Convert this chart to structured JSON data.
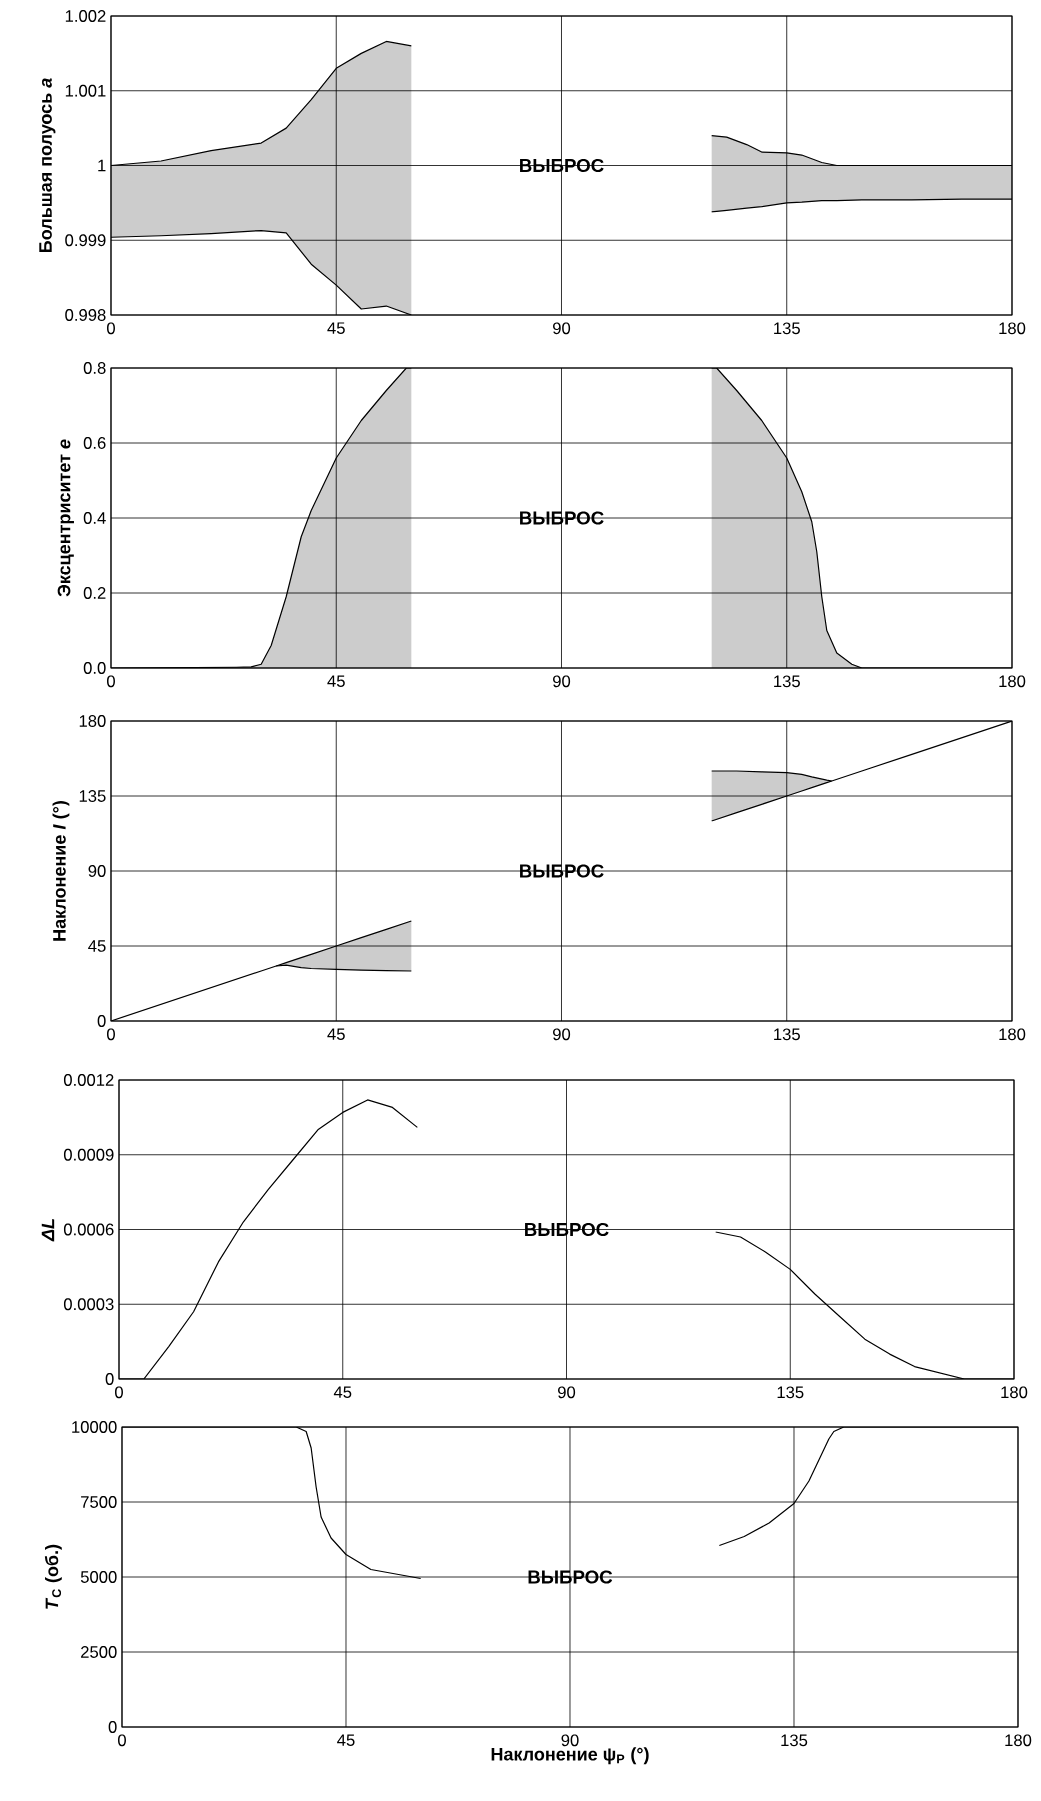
{
  "chart_data": [
    {
      "type": "line",
      "ylabel": "Большая полуось *a*",
      "xlim": [
        0,
        180
      ],
      "xticks": [
        0,
        45,
        90,
        135,
        180
      ],
      "ylim": [
        0.998,
        1.002
      ],
      "yticks": [
        0.998,
        0.999,
        1,
        1.001,
        1.002
      ],
      "grid": true,
      "annotations": [
        "ВЫБРОС"
      ],
      "series": [
        {
          "color": "#000000",
          "x": [
            0,
            10,
            20,
            30,
            35,
            40,
            45,
            50,
            55,
            60
          ],
          "values": [
            1.0,
            1.00006,
            1.0002,
            1.0003,
            1.0005,
            1.00088,
            1.0013,
            1.0015,
            1.00166,
            1.0016
          ],
          "upper": [
            1.0,
            1.00006,
            1.0002,
            1.0003,
            1.0005,
            1.00088,
            1.0013,
            1.0015,
            1.00166,
            1.0016
          ],
          "lower": [
            0.99904,
            0.99906,
            0.99909,
            0.99913,
            0.9991,
            0.99868,
            0.9984,
            0.99808,
            0.99812,
            0.998
          ]
        },
        {
          "color": "#000000",
          "x": [
            0,
            10,
            20,
            30,
            35,
            40,
            45,
            50,
            55,
            60
          ],
          "values": [
            0.99904,
            0.99906,
            0.99909,
            0.99913,
            0.9991,
            0.99868,
            0.9984,
            0.99808,
            0.99812,
            0.998
          ]
        },
        {
          "color": "#000000",
          "x": [
            120,
            123,
            127,
            130,
            135,
            138,
            142,
            145,
            150,
            160,
            170,
            180
          ],
          "values": [
            1.0004,
            1.00038,
            1.00028,
            1.00018,
            1.00017,
            1.00014,
            1.00004,
            1.0,
            1.0,
            1.0,
            1.0,
            1.0
          ],
          "upper": [
            1.0004,
            1.00038,
            1.00028,
            1.00018,
            1.00017,
            1.00014,
            1.00004,
            1.0,
            1.0,
            1.0,
            1.0,
            1.0
          ],
          "lower": [
            0.99938,
            0.9994,
            0.99943,
            0.99945,
            0.9995,
            0.99951,
            0.99953,
            0.99953,
            0.99954,
            0.99954,
            0.99955,
            0.99955
          ]
        },
        {
          "color": "#000000",
          "x": [
            120,
            123,
            127,
            130,
            135,
            138,
            142,
            145,
            150,
            160,
            170,
            180
          ],
          "values": [
            0.99938,
            0.9994,
            0.99943,
            0.99945,
            0.9995,
            0.99951,
            0.99953,
            0.99953,
            0.99954,
            0.99954,
            0.99955,
            0.99955
          ]
        }
      ]
    },
    {
      "type": "area",
      "ylabel": "Эксцентриситет *e*",
      "xlim": [
        0,
        180
      ],
      "xticks": [
        0,
        45,
        90,
        135,
        180
      ],
      "ylim": [
        0,
        0.8
      ],
      "yticks": [
        {
          "value": 0,
          "label": "0.0"
        },
        {
          "value": 0.2,
          "label": "0.2"
        },
        {
          "value": 0.4,
          "label": "0.4"
        },
        {
          "value": 0.6,
          "label": "0.6"
        },
        {
          "value": 0.8,
          "label": "0.8"
        }
      ],
      "grid": true,
      "annotations": [
        "ВЫБРОС"
      ],
      "series": [
        {
          "color": "#cccccc",
          "x": [
            0,
            25,
            28,
            30,
            32,
            35,
            38,
            40,
            45,
            50,
            55,
            59,
            60
          ],
          "values": [
            0,
            0.002,
            0.003,
            0.01,
            0.06,
            0.19,
            0.35,
            0.42,
            0.56,
            0.66,
            0.74,
            0.8,
            0.8
          ]
        },
        {
          "color": "#cccccc",
          "x": [
            120,
            121,
            125,
            130,
            135,
            138,
            140,
            141,
            142,
            143,
            145,
            148,
            150,
            160,
            180
          ],
          "values": [
            0.8,
            0.8,
            0.74,
            0.66,
            0.56,
            0.47,
            0.39,
            0.31,
            0.19,
            0.1,
            0.04,
            0.01,
            0,
            0,
            0
          ]
        }
      ]
    },
    {
      "type": "line",
      "ylabel": "Наклонение *I* (°)",
      "xlim": [
        0,
        180
      ],
      "xticks": [
        0,
        45,
        90,
        135,
        180
      ],
      "ylim": [
        0,
        180
      ],
      "yticks": [
        0,
        45,
        90,
        135,
        180
      ],
      "grid": true,
      "annotations": [
        "ВЫБРОС"
      ],
      "series": [
        {
          "color": "#000000",
          "x": [
            0,
            10,
            20,
            30,
            33,
            35,
            38,
            40,
            45,
            50,
            55,
            60
          ],
          "values": [
            0,
            10,
            20,
            30,
            33,
            35,
            38,
            40,
            45,
            50,
            55,
            60
          ],
          "upper": [
            0,
            10,
            20,
            30,
            33,
            35,
            38,
            40,
            45,
            50,
            55,
            60
          ],
          "lower": [
            0,
            10,
            20,
            30,
            33,
            33.5,
            32,
            31.5,
            31,
            30.5,
            30.2,
            30
          ]
        },
        {
          "color": "#000000",
          "x": [
            33,
            35,
            38,
            40,
            45,
            50,
            55,
            60
          ],
          "values": [
            33,
            33.5,
            32,
            31.5,
            31,
            30.5,
            30.2,
            30
          ]
        },
        {
          "color": "#000000",
          "x": [
            120,
            125,
            130,
            135,
            138,
            140,
            143,
            144,
            150,
            160,
            170,
            180
          ],
          "values": [
            120,
            125,
            130,
            135,
            138,
            140,
            143,
            144,
            150,
            160,
            170,
            180
          ],
          "lower": [
            120,
            125,
            130,
            135,
            138,
            140,
            143,
            144,
            150,
            160,
            170,
            180
          ],
          "upper": [
            150,
            150,
            149.5,
            149,
            148,
            146.5,
            144.5,
            144,
            150,
            160,
            170,
            180
          ]
        },
        {
          "color": "#000000",
          "x": [
            120,
            125,
            130,
            135,
            138,
            140,
            143,
            144
          ],
          "values": [
            150,
            150,
            149.5,
            149,
            148,
            146.5,
            144.5,
            144
          ]
        }
      ]
    },
    {
      "type": "line",
      "ylabel": "*ΔL*",
      "xlim": [
        0,
        180
      ],
      "xticks": [
        0,
        45,
        90,
        135,
        180
      ],
      "ylim": [
        0,
        0.0012
      ],
      "yticks": [
        0,
        0.0003,
        0.0006,
        0.0009,
        0.0012
      ],
      "grid": true,
      "annotations": [
        "ВЫБРОС"
      ],
      "series": [
        {
          "color": "#000000",
          "x": [
            0,
            5,
            10,
            15,
            20,
            25,
            30,
            35,
            40,
            45,
            50,
            55,
            60
          ],
          "values": [
            0,
            0,
            0.00013,
            0.00027,
            0.00047,
            0.00063,
            0.00076,
            0.00088,
            0.001,
            0.00107,
            0.00112,
            0.00109,
            0.00101
          ]
        },
        {
          "color": "#000000",
          "x": [
            120,
            125,
            130,
            135,
            140,
            145,
            150,
            155,
            160,
            170,
            180
          ],
          "values": [
            0.00059,
            0.00057,
            0.00051,
            0.00044,
            0.00034,
            0.00025,
            0.00016,
            0.0001,
            5e-05,
            0,
            0
          ]
        }
      ]
    },
    {
      "type": "line",
      "ylabel": "*T*$_{C}$ (об.)",
      "xlabel": "Наклонение ψ$_{P}$ (°)",
      "xlim": [
        0,
        180
      ],
      "xticks": [
        0,
        45,
        90,
        135,
        180
      ],
      "ylim": [
        0,
        10000
      ],
      "yticks": [
        0,
        2500,
        5000,
        7500,
        10000
      ],
      "grid": true,
      "annotations": [
        "ВЫБРОС"
      ],
      "series": [
        {
          "color": "#000000",
          "x": [
            0,
            25,
            30,
            33,
            35,
            37,
            38,
            39,
            40,
            42,
            45,
            50,
            55,
            60
          ],
          "values": [
            10000,
            10000,
            10000,
            10000,
            10000,
            9850,
            9300,
            8000,
            7000,
            6300,
            5750,
            5250,
            5100,
            4950
          ]
        },
        {
          "color": "#000000",
          "x": [
            120,
            125,
            130,
            135,
            138,
            140,
            142,
            143,
            145,
            148,
            180
          ],
          "values": [
            6050,
            6350,
            6800,
            7450,
            8200,
            8900,
            9600,
            9850,
            10000,
            10000,
            10000
          ]
        }
      ]
    }
  ]
}
